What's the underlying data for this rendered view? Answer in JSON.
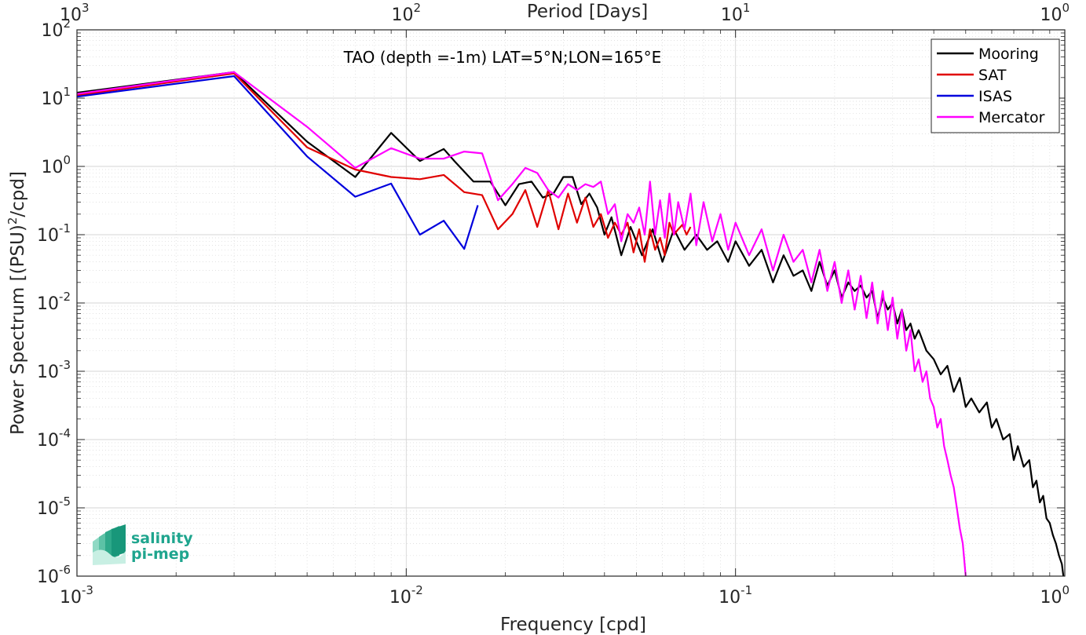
{
  "chart_data": {
    "type": "line",
    "title": "",
    "annotation": "TAO (depth =-1m) LAT=5°N;LON=165°E",
    "xlabel": "Frequency [cpd]",
    "ylabel_main": "Power Spectrum [(PSU)",
    "ylabel_sup": "2",
    "ylabel_tail": "/cpd]",
    "top_xlabel": "Period [Days]",
    "xscale": "log",
    "yscale": "log",
    "xlim": [
      0.001,
      1
    ],
    "ylim": [
      1e-06,
      100
    ],
    "grid": true,
    "legend_position": "top-right",
    "x_ticks": [
      {
        "value": 0.001,
        "base": "10",
        "exp": "-3"
      },
      {
        "value": 0.01,
        "base": "10",
        "exp": "-2"
      },
      {
        "value": 0.1,
        "base": "10",
        "exp": "-1"
      },
      {
        "value": 1,
        "base": "10",
        "exp": "0"
      }
    ],
    "top_ticks": [
      {
        "value": 0.001,
        "base": "10",
        "exp": "3"
      },
      {
        "value": 0.01,
        "base": "10",
        "exp": "2"
      },
      {
        "value": 0.1,
        "base": "10",
        "exp": "1"
      },
      {
        "value": 1,
        "base": "10",
        "exp": "0"
      }
    ],
    "y_ticks": [
      {
        "value": 100,
        "base": "10",
        "exp": "2"
      },
      {
        "value": 10,
        "base": "10",
        "exp": "1"
      },
      {
        "value": 1,
        "base": "10",
        "exp": "0"
      },
      {
        "value": 0.1,
        "base": "10",
        "exp": "-1"
      },
      {
        "value": 0.01,
        "base": "10",
        "exp": "-2"
      },
      {
        "value": 0.001,
        "base": "10",
        "exp": "-3"
      },
      {
        "value": 0.0001,
        "base": "10",
        "exp": "-4"
      },
      {
        "value": 1e-05,
        "base": "10",
        "exp": "-5"
      },
      {
        "value": 1e-06,
        "base": "10",
        "exp": "-6"
      }
    ],
    "series": [
      {
        "name": "Mooring",
        "color": "#000000",
        "x": [
          0.001,
          0.003,
          0.005,
          0.007,
          0.009,
          0.011,
          0.013,
          0.014,
          0.016,
          0.018,
          0.02,
          0.022,
          0.024,
          0.026,
          0.028,
          0.03,
          0.032,
          0.034,
          0.036,
          0.038,
          0.04,
          0.042,
          0.045,
          0.048,
          0.052,
          0.056,
          0.06,
          0.065,
          0.07,
          0.076,
          0.082,
          0.088,
          0.095,
          0.1,
          0.11,
          0.12,
          0.13,
          0.14,
          0.15,
          0.16,
          0.17,
          0.18,
          0.19,
          0.2,
          0.21,
          0.22,
          0.23,
          0.24,
          0.25,
          0.26,
          0.27,
          0.28,
          0.29,
          0.3,
          0.31,
          0.32,
          0.33,
          0.34,
          0.35,
          0.36,
          0.38,
          0.4,
          0.42,
          0.44,
          0.46,
          0.48,
          0.5,
          0.52,
          0.55,
          0.58,
          0.6,
          0.62,
          0.65,
          0.68,
          0.7,
          0.72,
          0.75,
          0.78,
          0.8,
          0.82,
          0.84,
          0.86,
          0.88,
          0.9,
          0.92,
          0.94,
          0.96,
          0.98,
          0.99
        ],
        "y": [
          12,
          24,
          2.3,
          0.7,
          3.1,
          1.2,
          1.8,
          1.2,
          0.6,
          0.6,
          0.27,
          0.55,
          0.6,
          0.35,
          0.4,
          0.7,
          0.7,
          0.28,
          0.4,
          0.25,
          0.1,
          0.18,
          0.05,
          0.13,
          0.05,
          0.12,
          0.04,
          0.12,
          0.06,
          0.1,
          0.06,
          0.08,
          0.04,
          0.08,
          0.035,
          0.06,
          0.02,
          0.05,
          0.025,
          0.03,
          0.015,
          0.04,
          0.018,
          0.03,
          0.012,
          0.02,
          0.015,
          0.018,
          0.012,
          0.015,
          0.006,
          0.012,
          0.008,
          0.01,
          0.005,
          0.008,
          0.004,
          0.005,
          0.003,
          0.004,
          0.002,
          0.0015,
          0.0009,
          0.0012,
          0.0005,
          0.0008,
          0.0003,
          0.0004,
          0.00025,
          0.00035,
          0.00015,
          0.0002,
          0.0001,
          0.00012,
          5e-05,
          8e-05,
          4e-05,
          5e-05,
          2e-05,
          2.5e-05,
          1.2e-05,
          1.5e-05,
          7e-06,
          6e-06,
          4e-06,
          3e-06,
          2e-06,
          1.5e-06,
          1e-06
        ]
      },
      {
        "name": "SAT",
        "color": "#e00000",
        "x": [
          0.001,
          0.003,
          0.005,
          0.007,
          0.009,
          0.011,
          0.013,
          0.015,
          0.017,
          0.019,
          0.021,
          0.023,
          0.025,
          0.027,
          0.029,
          0.031,
          0.033,
          0.035,
          0.037,
          0.039,
          0.041,
          0.043,
          0.045,
          0.047,
          0.049,
          0.051,
          0.053,
          0.055,
          0.057,
          0.059,
          0.061,
          0.063,
          0.065,
          0.067,
          0.069,
          0.071,
          0.073
        ],
        "y": [
          11,
          23,
          1.9,
          0.9,
          0.7,
          0.65,
          0.75,
          0.42,
          0.38,
          0.12,
          0.2,
          0.45,
          0.13,
          0.45,
          0.12,
          0.4,
          0.15,
          0.35,
          0.13,
          0.2,
          0.09,
          0.15,
          0.1,
          0.15,
          0.055,
          0.12,
          0.04,
          0.12,
          0.06,
          0.09,
          0.05,
          0.15,
          0.1,
          0.12,
          0.14,
          0.1,
          0.13
        ]
      },
      {
        "name": "ISAS",
        "color": "#0000dd",
        "x": [
          0.001,
          0.003,
          0.005,
          0.007,
          0.009,
          0.011,
          0.013,
          0.015,
          0.0165
        ],
        "y": [
          10.5,
          21,
          1.4,
          0.36,
          0.56,
          0.1,
          0.16,
          0.062,
          0.27
        ]
      },
      {
        "name": "Mercator",
        "color": "#ff00ff",
        "x": [
          0.001,
          0.003,
          0.005,
          0.007,
          0.009,
          0.011,
          0.013,
          0.015,
          0.017,
          0.019,
          0.021,
          0.023,
          0.025,
          0.027,
          0.029,
          0.031,
          0.033,
          0.035,
          0.037,
          0.039,
          0.041,
          0.043,
          0.045,
          0.047,
          0.049,
          0.051,
          0.053,
          0.055,
          0.057,
          0.059,
          0.061,
          0.063,
          0.065,
          0.067,
          0.07,
          0.073,
          0.076,
          0.08,
          0.085,
          0.09,
          0.095,
          0.1,
          0.11,
          0.12,
          0.13,
          0.14,
          0.15,
          0.16,
          0.17,
          0.18,
          0.19,
          0.2,
          0.21,
          0.22,
          0.23,
          0.24,
          0.25,
          0.26,
          0.27,
          0.28,
          0.29,
          0.3,
          0.31,
          0.32,
          0.33,
          0.34,
          0.35,
          0.36,
          0.37,
          0.38,
          0.39,
          0.4,
          0.41,
          0.42,
          0.43,
          0.44,
          0.45,
          0.46,
          0.47,
          0.48,
          0.49,
          0.5
        ],
        "y": [
          11.5,
          24,
          3.8,
          0.95,
          1.85,
          1.3,
          1.3,
          1.65,
          1.55,
          0.32,
          0.55,
          0.95,
          0.8,
          0.45,
          0.35,
          0.55,
          0.45,
          0.55,
          0.5,
          0.6,
          0.2,
          0.28,
          0.08,
          0.2,
          0.15,
          0.25,
          0.1,
          0.6,
          0.1,
          0.32,
          0.09,
          0.4,
          0.1,
          0.3,
          0.12,
          0.4,
          0.07,
          0.3,
          0.08,
          0.2,
          0.06,
          0.15,
          0.05,
          0.12,
          0.03,
          0.1,
          0.04,
          0.06,
          0.02,
          0.06,
          0.015,
          0.04,
          0.01,
          0.03,
          0.008,
          0.025,
          0.006,
          0.02,
          0.005,
          0.015,
          0.004,
          0.012,
          0.003,
          0.008,
          0.002,
          0.004,
          0.001,
          0.0015,
          0.0007,
          0.001,
          0.0004,
          0.0003,
          0.00015,
          0.0002,
          8e-05,
          5e-05,
          3e-05,
          2e-05,
          1e-05,
          5e-06,
          3e-06,
          1e-06
        ]
      }
    ]
  },
  "logo": {
    "line1": "salinity",
    "line2": "pi-mep"
  }
}
